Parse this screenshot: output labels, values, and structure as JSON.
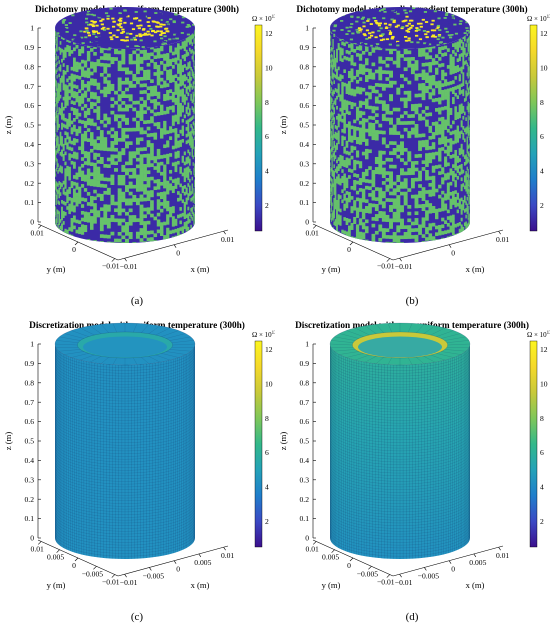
{
  "colorbar": {
    "unit": "Ω × 10",
    "exponent": "13",
    "ticks": [
      "2",
      "4",
      "6",
      "8",
      "10",
      "12"
    ],
    "tick_values": [
      2,
      4,
      6,
      8,
      10,
      12
    ],
    "range": [
      0.5,
      12.5
    ],
    "colormap": [
      "#3b0f8c",
      "#3b49c4",
      "#1f7ecb",
      "#24a2b8",
      "#33b88a",
      "#7fc75a",
      "#c8c93a",
      "#f5d92a",
      "#fcf520"
    ]
  },
  "chart_data": [
    {
      "type": "heatmap",
      "id": "a",
      "title": "Dichotomy model with uniform temperature (300h)",
      "caption": "(a)",
      "xlabel": "x (m)",
      "ylabel": "y (m)",
      "zlabel": "z (m)",
      "z_ticks": [
        "0",
        "0.1",
        "0.2",
        "0.3",
        "0.4",
        "0.5",
        "0.6",
        "0.7",
        "0.8",
        "0.9",
        "1"
      ],
      "x_ticks": [
        "−0.01",
        "0",
        "0.01"
      ],
      "y_ticks": [
        "0.01",
        "0",
        "−0.01"
      ],
      "surface": "binary",
      "binary_values": [
        1.2,
        7.5
      ],
      "inner_value": 12
    },
    {
      "type": "heatmap",
      "id": "b",
      "title": "Dichotomy model with radial gradient temperature (300h)",
      "caption": "(b)",
      "xlabel": "x (m)",
      "ylabel": "y (m)",
      "zlabel": "z (m)",
      "z_ticks": [
        "0",
        "0.1",
        "0.2",
        "0.3",
        "0.4",
        "0.5",
        "0.6",
        "0.7",
        "0.8",
        "0.9",
        "1"
      ],
      "x_ticks": [
        "−0.01",
        "0",
        "0.01"
      ],
      "y_ticks": [
        "0.01",
        "0",
        "−0.01"
      ],
      "surface": "binary",
      "binary_values": [
        1.2,
        7.5
      ],
      "inner_value": 12
    },
    {
      "type": "heatmap",
      "id": "c",
      "title": "Discretization model with uniform temperature (300h)",
      "caption": "(c)",
      "xlabel": "x (m)",
      "ylabel": "y (m)",
      "zlabel": "z (m)",
      "z_ticks": [
        "0",
        "0.1",
        "0.2",
        "0.3",
        "0.4",
        "0.5",
        "0.6",
        "0.7",
        "0.8",
        "0.9",
        "1"
      ],
      "x_ticks": [
        "−0.01",
        "−0.005",
        "0",
        "0.005",
        "0.01"
      ],
      "y_ticks": [
        "0.01",
        "0.005",
        "0",
        "−0.005",
        "−0.01"
      ],
      "surface": "uniform",
      "outer_value": 4.3,
      "inner_value": 5.5
    },
    {
      "type": "heatmap",
      "id": "d",
      "title": "Discretization model with non-uniform temperature (300h)",
      "caption": "(d)",
      "xlabel": "x (m)",
      "ylabel": "y (m)",
      "zlabel": "z (m)",
      "z_ticks": [
        "0",
        "0.1",
        "0.2",
        "0.3",
        "0.4",
        "0.5",
        "0.6",
        "0.7",
        "0.8",
        "0.9",
        "1"
      ],
      "x_ticks": [
        "−0.01",
        "−0.005",
        "0",
        "0.005",
        "0.01"
      ],
      "y_ticks": [
        "0.01",
        "0.005",
        "0",
        "−0.005",
        "−0.01"
      ],
      "surface": "gradient",
      "outer_value_top": 6.2,
      "outer_value_bottom": 4.3,
      "inner_value": 9.5
    }
  ]
}
